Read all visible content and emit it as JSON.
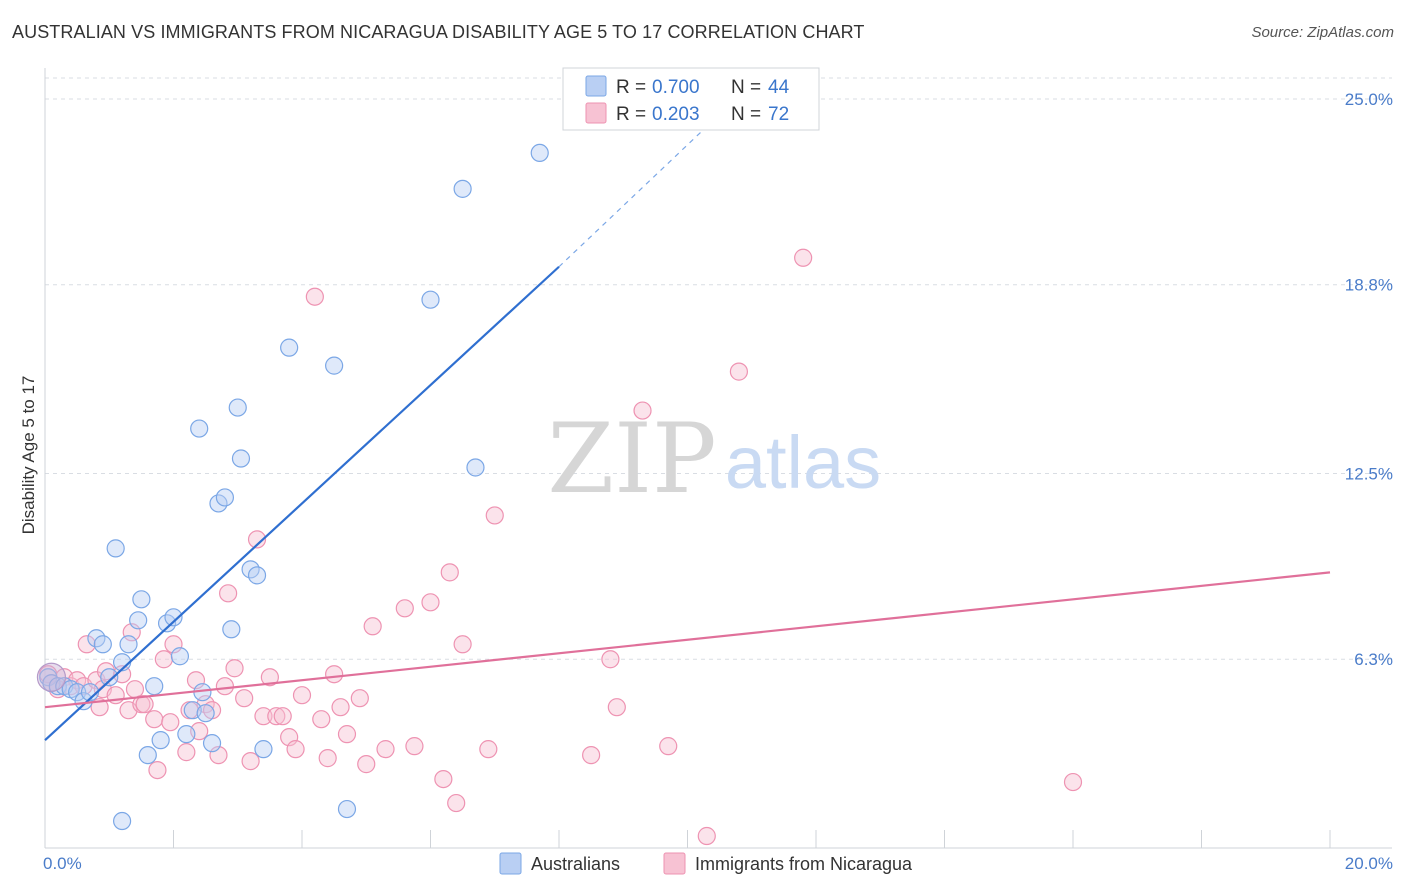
{
  "title": "AUSTRALIAN VS IMMIGRANTS FROM NICARAGUA DISABILITY AGE 5 TO 17 CORRELATION CHART",
  "source": "Source: ZipAtlas.com",
  "watermark": {
    "zip": "ZIP",
    "atlas": "atlas"
  },
  "colors": {
    "australians": "#7ba7e6",
    "australians_fill": "#b9cff3",
    "australians_line": "#2f6fd0",
    "nicaragua": "#ee93b2",
    "nicaragua_fill": "#f7c2d3",
    "nicaragua_line": "#e0709a",
    "grid": "#d9dde3",
    "tick_label": "#4a7cc9"
  },
  "legend_stats": [
    {
      "r_label": "R =",
      "r_value": "0.700",
      "n_label": "N =",
      "n_value": "44"
    },
    {
      "r_label": "R =",
      "r_value": "0.203",
      "n_label": "N =",
      "n_value": "72"
    }
  ],
  "chart_data": {
    "type": "scatter",
    "title": "AUSTRALIAN VS IMMIGRANTS FROM NICARAGUA DISABILITY AGE 5 TO 17 CORRELATION CHART",
    "xlabel": "",
    "ylabel": "Disability Age 5 to 17",
    "xlim": [
      0,
      20
    ],
    "ylim": [
      0,
      25.8
    ],
    "x_tick_labels": [
      "0.0%",
      "20.0%"
    ],
    "y_ticks": [
      6.3,
      12.5,
      18.8,
      25.0
    ],
    "y_tick_labels": [
      "6.3%",
      "12.5%",
      "18.8%",
      "25.0%"
    ],
    "grid": true,
    "legend_position": "bottom-center",
    "series": [
      {
        "name": "Australians",
        "r": 0.7,
        "n": 44,
        "trend": {
          "x0": 0.0,
          "y0": 3.6,
          "x1": 8.0,
          "y1": 19.4,
          "dashed_to": [
            10.9,
            25.3
          ]
        },
        "points": [
          [
            0.05,
            5.7
          ],
          [
            0.1,
            5.5
          ],
          [
            0.2,
            5.4
          ],
          [
            0.3,
            5.4
          ],
          [
            0.4,
            5.3
          ],
          [
            0.5,
            5.2
          ],
          [
            0.6,
            4.9
          ],
          [
            0.7,
            5.2
          ],
          [
            0.8,
            7.0
          ],
          [
            0.9,
            6.8
          ],
          [
            1.0,
            5.7
          ],
          [
            1.1,
            10.0
          ],
          [
            1.2,
            6.2
          ],
          [
            1.3,
            6.8
          ],
          [
            1.45,
            7.6
          ],
          [
            1.5,
            8.3
          ],
          [
            1.6,
            3.1
          ],
          [
            1.7,
            5.4
          ],
          [
            1.8,
            3.6
          ],
          [
            1.9,
            7.5
          ],
          [
            2.0,
            7.7
          ],
          [
            2.1,
            6.4
          ],
          [
            2.2,
            3.8
          ],
          [
            2.3,
            4.6
          ],
          [
            2.4,
            14.0
          ],
          [
            2.45,
            5.2
          ],
          [
            2.5,
            4.5
          ],
          [
            2.6,
            3.5
          ],
          [
            2.7,
            11.5
          ],
          [
            2.8,
            11.7
          ],
          [
            2.9,
            7.3
          ],
          [
            3.0,
            14.7
          ],
          [
            3.05,
            13.0
          ],
          [
            3.2,
            9.3
          ],
          [
            3.3,
            9.1
          ],
          [
            3.4,
            3.3
          ],
          [
            3.8,
            16.7
          ],
          [
            4.5,
            16.1
          ],
          [
            4.7,
            1.3
          ],
          [
            6.0,
            18.3
          ],
          [
            6.5,
            22.0
          ],
          [
            6.7,
            12.7
          ],
          [
            7.7,
            23.2
          ],
          [
            1.2,
            0.9
          ]
        ]
      },
      {
        "name": "Immigrants from Nicaragua",
        "r": 0.203,
        "n": 72,
        "trend": {
          "x0": 0.0,
          "y0": 4.7,
          "x1": 20.0,
          "y1": 9.2
        },
        "points": [
          [
            0.05,
            5.8
          ],
          [
            0.1,
            5.5
          ],
          [
            0.2,
            5.3
          ],
          [
            0.3,
            5.7
          ],
          [
            0.4,
            5.4
          ],
          [
            0.5,
            5.6
          ],
          [
            0.6,
            5.4
          ],
          [
            0.65,
            6.8
          ],
          [
            0.8,
            5.6
          ],
          [
            0.85,
            4.7
          ],
          [
            0.9,
            5.3
          ],
          [
            0.95,
            5.9
          ],
          [
            1.1,
            5.1
          ],
          [
            1.2,
            5.8
          ],
          [
            1.3,
            4.6
          ],
          [
            1.35,
            7.2
          ],
          [
            1.4,
            5.3
          ],
          [
            1.5,
            4.8
          ],
          [
            1.55,
            4.8
          ],
          [
            1.7,
            4.3
          ],
          [
            1.75,
            2.6
          ],
          [
            1.85,
            6.3
          ],
          [
            1.95,
            4.2
          ],
          [
            2.0,
            6.8
          ],
          [
            2.2,
            3.2
          ],
          [
            2.25,
            4.6
          ],
          [
            2.35,
            5.6
          ],
          [
            2.4,
            3.9
          ],
          [
            2.5,
            4.8
          ],
          [
            2.6,
            4.6
          ],
          [
            2.7,
            3.1
          ],
          [
            2.8,
            5.4
          ],
          [
            2.85,
            8.5
          ],
          [
            2.95,
            6.0
          ],
          [
            3.1,
            5.0
          ],
          [
            3.2,
            2.9
          ],
          [
            3.3,
            10.3
          ],
          [
            3.4,
            4.4
          ],
          [
            3.5,
            5.7
          ],
          [
            3.6,
            4.4
          ],
          [
            3.7,
            4.4
          ],
          [
            3.8,
            3.7
          ],
          [
            3.9,
            3.3
          ],
          [
            4.0,
            5.1
          ],
          [
            4.2,
            18.4
          ],
          [
            4.3,
            4.3
          ],
          [
            4.4,
            3.0
          ],
          [
            4.5,
            5.8
          ],
          [
            4.6,
            4.7
          ],
          [
            4.7,
            3.8
          ],
          [
            4.9,
            5.0
          ],
          [
            5.0,
            2.8
          ],
          [
            5.1,
            7.4
          ],
          [
            5.3,
            3.3
          ],
          [
            5.6,
            8.0
          ],
          [
            5.75,
            3.4
          ],
          [
            6.0,
            8.2
          ],
          [
            6.2,
            2.3
          ],
          [
            6.3,
            9.2
          ],
          [
            6.4,
            1.5
          ],
          [
            6.5,
            6.8
          ],
          [
            6.9,
            3.3
          ],
          [
            7.0,
            11.1
          ],
          [
            8.5,
            3.1
          ],
          [
            8.8,
            6.3
          ],
          [
            8.9,
            4.7
          ],
          [
            9.3,
            14.6
          ],
          [
            9.7,
            3.4
          ],
          [
            10.3,
            0.4
          ],
          [
            10.8,
            15.9
          ],
          [
            11.8,
            19.7
          ],
          [
            16.0,
            2.2
          ]
        ]
      }
    ]
  }
}
